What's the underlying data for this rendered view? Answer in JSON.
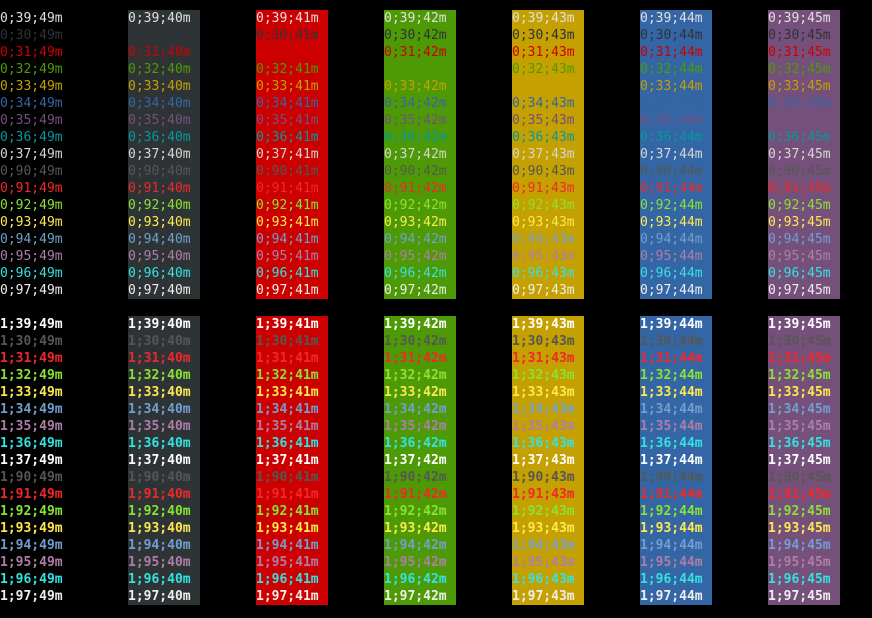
{
  "terminal": {
    "blocks": [
      {
        "weight": "0",
        "bold": false,
        "columns": [
          {
            "bg": "49",
            "bg_color": null,
            "cells": [
              "0;39;49m",
              "0;30;49m",
              "0;31;49m",
              "0;32;49m",
              "0;33;49m",
              "0;34;49m",
              "0;35;49m",
              "0;36;49m",
              "0;37;49m",
              "0;90;49m",
              "0;91;49m",
              "0;92;49m",
              "0;93;49m",
              "0;94;49m",
              "0;95;49m",
              "0;96;49m",
              "0;97;49m"
            ]
          },
          {
            "bg": "40",
            "bg_color": "#2e3436",
            "cells": [
              "0;39;40m",
              "0;30;40m",
              "0;31;40m",
              "0;32;40m",
              "0;33;40m",
              "0;34;40m",
              "0;35;40m",
              "0;36;40m",
              "0;37;40m",
              "0;90;40m",
              "0;91;40m",
              "0;92;40m",
              "0;93;40m",
              "0;94;40m",
              "0;95;40m",
              "0;96;40m",
              "0;97;40m"
            ]
          },
          {
            "bg": "41",
            "bg_color": "#cc0000",
            "cells": [
              "0;39;41m",
              "0;30;41m",
              "0;31;41m",
              "0;32;41m",
              "0;33;41m",
              "0;34;41m",
              "0;35;41m",
              "0;36;41m",
              "0;37;41m",
              "0;90;41m",
              "0;91;41m",
              "0;92;41m",
              "0;93;41m",
              "0;94;41m",
              "0;95;41m",
              "0;96;41m",
              "0;97;41m"
            ]
          },
          {
            "bg": "42",
            "bg_color": "#4e9a06",
            "cells": [
              "0;39;42m",
              "0;30;42m",
              "0;31;42m",
              "0;32;42m",
              "0;33;42m",
              "0;34;42m",
              "0;35;42m",
              "0;36;42m",
              "0;37;42m",
              "0;90;42m",
              "0;91;42m",
              "0;92;42m",
              "0;93;42m",
              "0;94;42m",
              "0;95;42m",
              "0;96;42m",
              "0;97;42m"
            ]
          },
          {
            "bg": "43",
            "bg_color": "#c4a000",
            "cells": [
              "0;39;43m",
              "0;30;43m",
              "0;31;43m",
              "0;32;43m",
              "0;33;43m",
              "0;34;43m",
              "0;35;43m",
              "0;36;43m",
              "0;37;43m",
              "0;90;43m",
              "0;91;43m",
              "0;92;43m",
              "0;93;43m",
              "0;94;43m",
              "0;95;43m",
              "0;96;43m",
              "0;97;43m"
            ]
          },
          {
            "bg": "44",
            "bg_color": "#3465a4",
            "cells": [
              "0;39;44m",
              "0;30;44m",
              "0;31;44m",
              "0;32;44m",
              "0;33;44m",
              "0;34;44m",
              "0;35;44m",
              "0;36;44m",
              "0;37;44m",
              "0;90;44m",
              "0;91;44m",
              "0;92;44m",
              "0;93;44m",
              "0;94;44m",
              "0;95;44m",
              "0;96;44m",
              "0;97;44m"
            ]
          },
          {
            "bg": "45",
            "bg_color": "#75507b",
            "cells": [
              "0;39;45m",
              "0;30;45m",
              "0;31;45m",
              "0;32;45m",
              "0;33;45m",
              "0;34;45m",
              "0;35;45m",
              "0;36;45m",
              "0;37;45m",
              "0;90;45m",
              "0;91;45m",
              "0;92;45m",
              "0;93;45m",
              "0;94;45m",
              "0;95;45m",
              "0;96;45m",
              "0;97;45m"
            ]
          }
        ]
      },
      {
        "weight": "1",
        "bold": true,
        "columns": [
          {
            "bg": "49",
            "bg_color": null,
            "cells": [
              "1;39;49m",
              "1;30;49m",
              "1;31;49m",
              "1;32;49m",
              "1;33;49m",
              "1;34;49m",
              "1;35;49m",
              "1;36;49m",
              "1;37;49m",
              "1;90;49m",
              "1;91;49m",
              "1;92;49m",
              "1;93;49m",
              "1;94;49m",
              "1;95;49m",
              "1;96;49m",
              "1;97;49m"
            ]
          },
          {
            "bg": "40",
            "bg_color": "#2e3436",
            "cells": [
              "1;39;40m",
              "1;30;40m",
              "1;31;40m",
              "1;32;40m",
              "1;33;40m",
              "1;34;40m",
              "1;35;40m",
              "1;36;40m",
              "1;37;40m",
              "1;90;40m",
              "1;91;40m",
              "1;92;40m",
              "1;93;40m",
              "1;94;40m",
              "1;95;40m",
              "1;96;40m",
              "1;97;40m"
            ]
          },
          {
            "bg": "41",
            "bg_color": "#cc0000",
            "cells": [
              "1;39;41m",
              "1;30;41m",
              "1;31;41m",
              "1;32;41m",
              "1;33;41m",
              "1;34;41m",
              "1;35;41m",
              "1;36;41m",
              "1;37;41m",
              "1;90;41m",
              "1;91;41m",
              "1;92;41m",
              "1;93;41m",
              "1;94;41m",
              "1;95;41m",
              "1;96;41m",
              "1;97;41m"
            ]
          },
          {
            "bg": "42",
            "bg_color": "#4e9a06",
            "cells": [
              "1;39;42m",
              "1;30;42m",
              "1;31;42m",
              "1;32;42m",
              "1;33;42m",
              "1;34;42m",
              "1;35;42m",
              "1;36;42m",
              "1;37;42m",
              "1;90;42m",
              "1;91;42m",
              "1;92;42m",
              "1;93;42m",
              "1;94;42m",
              "1;95;42m",
              "1;96;42m",
              "1;97;42m"
            ]
          },
          {
            "bg": "43",
            "bg_color": "#c4a000",
            "cells": [
              "1;39;43m",
              "1;30;43m",
              "1;31;43m",
              "1;32;43m",
              "1;33;43m",
              "1;34;43m",
              "1;35;43m",
              "1;36;43m",
              "1;37;43m",
              "1;90;43m",
              "1;91;43m",
              "1;92;43m",
              "1;93;43m",
              "1;94;43m",
              "1;95;43m",
              "1;96;43m",
              "1;97;43m"
            ]
          },
          {
            "bg": "44",
            "bg_color": "#3465a4",
            "cells": [
              "1;39;44m",
              "1;30;44m",
              "1;31;44m",
              "1;32;44m",
              "1;33;44m",
              "1;34;44m",
              "1;35;44m",
              "1;36;44m",
              "1;37;44m",
              "1;90;44m",
              "1;91;44m",
              "1;92;44m",
              "1;93;44m",
              "1;94;44m",
              "1;95;44m",
              "1;96;44m",
              "1;97;44m"
            ]
          },
          {
            "bg": "45",
            "bg_color": "#75507b",
            "cells": [
              "1;39;45m",
              "1;30;45m",
              "1;31;45m",
              "1;32;45m",
              "1;33;45m",
              "1;34;45m",
              "1;35;45m",
              "1;36;45m",
              "1;37;45m",
              "1;90;45m",
              "1;91;45m",
              "1;92;45m",
              "1;93;45m",
              "1;94;45m",
              "1;95;45m",
              "1;96;45m",
              "1;97;45m"
            ]
          }
        ]
      }
    ],
    "fg_palette": {
      "39": "#e0e0e0",
      "30": "#2e3436",
      "31": "#cc0000",
      "32": "#4e9a06",
      "33": "#c4a000",
      "34": "#3465a4",
      "35": "#75507b",
      "36": "#06989a",
      "37": "#d3d7cf",
      "90": "#555753",
      "91": "#ef2929",
      "92": "#8ae234",
      "93": "#fce94f",
      "94": "#729fcf",
      "95": "#ad7fa8",
      "96": "#34e2e2",
      "97": "#eeeeec"
    },
    "fg_palette_bold": {
      "39": "#ffffff",
      "30": "#555753",
      "31": "#ef2929",
      "32": "#8ae234",
      "33": "#fce94f",
      "34": "#729fcf",
      "35": "#ad7fa8",
      "36": "#34e2e2",
      "37": "#ffffff"
    },
    "terminal_bg": "#000000"
  }
}
